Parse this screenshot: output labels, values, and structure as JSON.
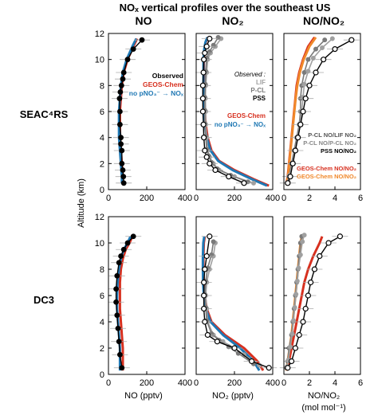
{
  "figure": {
    "title": "NOₓ vertical profiles over the southeast US",
    "column_titles": [
      "NO",
      "NO₂",
      "NO/NO₂"
    ],
    "row_labels": [
      "SEAC⁴RS",
      "DC3"
    ],
    "ylabel": "Altitude (km)",
    "xlabels": [
      "NO (pptv)",
      "NO₂ (pptv)",
      "NO/NO₂",
      "(mol mol⁻¹)"
    ]
  },
  "colors": {
    "observed": "#000000",
    "geos": "#d7301f",
    "nopno3": "#1f78b4",
    "lif": "#a0a0a0",
    "pcl": "#7a7a7a",
    "pss": "#000000",
    "geos_ratio": "#d7301f",
    "geos_ratio2": "#f0882a"
  },
  "legends": {
    "no": [
      {
        "text": "Observed",
        "color": "#000000"
      },
      {
        "text": "GEOS-Chem",
        "color": "#d7301f"
      },
      {
        "text": "no pNO₃⁻ → NOₓ",
        "color": "#1f78b4"
      }
    ],
    "no2_obs": [
      {
        "text": "Observed :",
        "color": "#000000",
        "italic": true
      },
      {
        "text": "LIF",
        "color": "#a0a0a0"
      },
      {
        "text": "P-CL",
        "color": "#7a7a7a"
      },
      {
        "text": "PSS",
        "color": "#000000"
      }
    ],
    "no2_mod": [
      {
        "text": "GEOS-Chem",
        "color": "#d7301f"
      },
      {
        "text": "no pNO₃⁻ → NOₓ",
        "color": "#1f78b4"
      }
    ],
    "ratio": [
      {
        "text": "P-CL NO/LIF NO₂",
        "color": "#555555"
      },
      {
        "text": "P-CL NO/P-CL NO₂",
        "color": "#888888"
      },
      {
        "text": "PSS NO/NO₂",
        "color": "#000000"
      },
      {
        "text": "GEOS-Chem NO/NO₂",
        "color": "#d7301f"
      },
      {
        "text": "GEOS-Chem NO/NO₂",
        "color": "#f0882a"
      }
    ]
  },
  "chart_data": [
    {
      "type": "line",
      "panel": "SEAC4RS-NO",
      "xlim": [
        0,
        400
      ],
      "ylim": [
        0,
        12
      ],
      "xticks": [
        "0",
        "200",
        "400"
      ],
      "yticks": [
        "0",
        "2",
        "4",
        "6",
        "8",
        "10",
        "12"
      ],
      "series": [
        {
          "name": "Observed",
          "style": "filled",
          "x": [
            80,
            78,
            75,
            70,
            70,
            65,
            65,
            60,
            60,
            58,
            62,
            68,
            75,
            80,
            100,
            130,
            175
          ],
          "y": [
            0.5,
            1.0,
            1.5,
            2.0,
            3.0,
            3.5,
            4.0,
            5.0,
            6.0,
            7.0,
            7.5,
            8.0,
            8.5,
            9.0,
            10.0,
            10.8,
            11.5
          ]
        },
        {
          "name": "GEOS-Chem",
          "style": "line",
          "x": [
            75,
            75,
            70,
            65,
            60,
            60,
            60,
            65,
            70,
            80,
            100,
            130,
            150
          ],
          "y": [
            0.5,
            1,
            2,
            3,
            4,
            5,
            6,
            7,
            8,
            9,
            10,
            11,
            11.6
          ]
        },
        {
          "name": "no pNO₃⁻ → NOₓ",
          "style": "line",
          "x": [
            70,
            70,
            65,
            60,
            55,
            55,
            55,
            60,
            65,
            75,
            95,
            125,
            145
          ],
          "y": [
            0.5,
            1,
            2,
            3,
            4,
            5,
            6,
            7,
            8,
            9,
            10,
            11,
            11.6
          ]
        }
      ]
    },
    {
      "type": "line",
      "panel": "SEAC4RS-NO2",
      "xlim": [
        0,
        400
      ],
      "ylim": [
        0,
        12
      ],
      "xticks": [
        "0",
        "200",
        "400"
      ],
      "series": [
        {
          "name": "LIF",
          "style": "grey",
          "x": [
            300,
            200,
            120,
            90,
            70,
            60,
            55,
            50,
            50,
            48,
            50,
            55,
            60,
            75,
            100,
            130
          ],
          "y": [
            0.5,
            1.0,
            1.5,
            2.0,
            2.5,
            3.0,
            4.0,
            5.0,
            6.0,
            7.0,
            8.0,
            9.0,
            10.0,
            10.5,
            11.0,
            11.6
          ]
        },
        {
          "name": "P-CL",
          "style": "grey",
          "x": [
            270,
            180,
            110,
            80,
            65,
            55,
            50,
            45,
            45,
            45,
            48,
            50,
            55,
            70,
            90,
            115
          ],
          "y": [
            0.6,
            1.1,
            1.6,
            2.1,
            2.6,
            3.1,
            4.1,
            5.1,
            6.1,
            7.1,
            8.1,
            9.1,
            10.1,
            10.6,
            11.1,
            11.7
          ]
        },
        {
          "name": "PSS",
          "style": "open",
          "x": [
            250,
            170,
            100,
            70,
            55,
            45,
            40,
            38,
            35,
            35,
            35,
            38,
            40,
            45,
            55,
            70
          ],
          "y": [
            0.5,
            1.0,
            1.5,
            2.0,
            2.5,
            3.0,
            4.0,
            5.0,
            6.0,
            7.0,
            8.0,
            9.0,
            10.0,
            10.5,
            11.0,
            11.6
          ]
        },
        {
          "name": "GEOS-Chem",
          "style": "line",
          "x": [
            380,
            300,
            200,
            120,
            80,
            60,
            50,
            45,
            40,
            40,
            40,
            40,
            45,
            50,
            60
          ],
          "y": [
            0.3,
            0.8,
            1.5,
            2.2,
            3,
            4,
            5,
            6,
            7,
            8,
            9,
            10,
            10.8,
            11.3,
            11.7
          ]
        },
        {
          "name": "no pNO₃⁻ → NOₓ",
          "style": "line",
          "x": [
            370,
            290,
            190,
            115,
            75,
            55,
            45,
            40,
            38,
            38,
            38,
            38,
            42,
            48,
            58
          ],
          "y": [
            0.3,
            0.8,
            1.5,
            2.2,
            3,
            4,
            5,
            6,
            7,
            8,
            9,
            10,
            10.8,
            11.3,
            11.7
          ]
        }
      ]
    },
    {
      "type": "line",
      "panel": "SEAC4RS-NO/NO2",
      "xlim": [
        0,
        6
      ],
      "ylim": [
        0,
        12
      ],
      "xticks": [
        "0",
        "2",
        "4",
        "6"
      ],
      "series": [
        {
          "name": "P-CL NO/LIF NO₂",
          "style": "grey",
          "x": [
            0.3,
            0.4,
            0.6,
            0.8,
            1.0,
            1.2,
            1.3,
            1.3,
            1.4,
            1.6,
            1.9,
            2.5,
            3.2
          ],
          "y": [
            0.5,
            1,
            2,
            3,
            4,
            5,
            6,
            7,
            8,
            9,
            10,
            10.8,
            11.5
          ]
        },
        {
          "name": "P-CL NO/P-CL NO₂",
          "style": "grey",
          "x": [
            0.35,
            0.45,
            0.7,
            0.9,
            1.1,
            1.3,
            1.4,
            1.5,
            1.6,
            1.9,
            2.3,
            3.0,
            3.8
          ],
          "y": [
            0.6,
            1.1,
            2.1,
            3.1,
            4.1,
            5.1,
            6.1,
            7.1,
            8.1,
            9.1,
            10.1,
            10.9,
            11.6
          ]
        },
        {
          "name": "PSS NO/NO₂",
          "style": "open",
          "x": [
            0.3,
            0.5,
            0.7,
            0.9,
            1.1,
            1.3,
            1.5,
            1.7,
            2.0,
            2.5,
            3.1,
            4.0,
            5.3
          ],
          "y": [
            0.5,
            1,
            2,
            3,
            4,
            5,
            6,
            7,
            8,
            9,
            10,
            10.8,
            11.5
          ]
        },
        {
          "name": "GEOS-Chem NO/NO₂",
          "style": "line",
          "x": [
            0.2,
            0.3,
            0.4,
            0.5,
            0.6,
            0.7,
            0.8,
            0.9,
            1.0,
            1.2,
            1.5,
            1.9,
            2.4
          ],
          "y": [
            0.5,
            1,
            2,
            3,
            4,
            5,
            6,
            7,
            8,
            9,
            10,
            11,
            11.7
          ]
        },
        {
          "name": "GEOS-Chem NO/NO₂",
          "style": "line2",
          "x": [
            0.22,
            0.32,
            0.42,
            0.52,
            0.62,
            0.72,
            0.82,
            0.92,
            1.05,
            1.25,
            1.55,
            2.0,
            2.5
          ],
          "y": [
            0.5,
            1,
            2,
            3,
            4,
            5,
            6,
            7,
            8,
            9,
            10,
            11,
            11.7
          ]
        }
      ]
    },
    {
      "type": "line",
      "panel": "DC3-NO",
      "xlim": [
        0,
        400
      ],
      "ylim": [
        0,
        12
      ],
      "xticks": [
        "0",
        "200",
        "400"
      ],
      "yticks": [
        "0",
        "2",
        "4",
        "6",
        "8",
        "10",
        "12"
      ],
      "series": [
        {
          "name": "Observed",
          "style": "filled",
          "x": [
            70,
            60,
            55,
            50,
            45,
            40,
            40,
            45,
            55,
            65,
            80,
            100,
            130
          ],
          "y": [
            0.5,
            1.5,
            2.5,
            3.5,
            4.5,
            5.5,
            6.5,
            7.5,
            8.5,
            9.0,
            9.5,
            10.0,
            10.5
          ]
        },
        {
          "name": "GEOS-Chem",
          "style": "line",
          "x": [
            75,
            75,
            75,
            70,
            65,
            60,
            60,
            60,
            65,
            75,
            90,
            110,
            125
          ],
          "y": [
            0.3,
            1,
            2,
            3,
            4,
            5,
            6,
            7,
            8,
            8.8,
            9.5,
            10,
            10.5
          ]
        },
        {
          "name": "no pNO₃⁻ → NOₓ",
          "style": "line",
          "x": [
            60,
            60,
            60,
            55,
            50,
            45,
            45,
            48,
            55,
            65,
            80,
            100,
            115
          ],
          "y": [
            0.3,
            1,
            2,
            3,
            4,
            5,
            6,
            7,
            8,
            8.8,
            9.5,
            10,
            10.5
          ]
        }
      ]
    },
    {
      "type": "line",
      "panel": "DC3-NO2",
      "xlim": [
        0,
        400
      ],
      "ylim": [
        0,
        12
      ],
      "xticks": [
        "0",
        "200",
        "400"
      ],
      "series": [
        {
          "name": "LIF",
          "style": "grey",
          "x": [
            330,
            250,
            200,
            140,
            90,
            60,
            55,
            50,
            55,
            70,
            90,
            100
          ],
          "y": [
            0.7,
            1.5,
            2,
            2.5,
            3,
            4,
            5,
            6,
            7,
            8,
            9,
            10
          ]
        },
        {
          "name": "P-CL",
          "style": "grey",
          "x": [
            300,
            220,
            170,
            120,
            80,
            55,
            50,
            45,
            50,
            60,
            80,
            90
          ],
          "y": [
            0.8,
            1.6,
            2.1,
            2.6,
            3.1,
            4.1,
            5.1,
            6.1,
            7.1,
            8.1,
            9.1,
            10.1
          ]
        },
        {
          "name": "PSS",
          "style": "open",
          "x": [
            380,
            290,
            200,
            110,
            60,
            45,
            40,
            40,
            40,
            45,
            55,
            70
          ],
          "y": [
            0.5,
            1.0,
            2.0,
            2.5,
            3.0,
            4.0,
            5.0,
            6.0,
            7.0,
            8.0,
            9.0,
            10.5
          ]
        },
        {
          "name": "GEOS-Chem",
          "style": "line",
          "x": [
            350,
            320,
            250,
            150,
            80,
            55,
            45,
            40,
            38,
            38,
            40,
            45
          ],
          "y": [
            0.3,
            1,
            2,
            3,
            4,
            5,
            6,
            7,
            8,
            9,
            10,
            10.5
          ]
        },
        {
          "name": "no pNO₃⁻ → NOₓ",
          "style": "line",
          "x": [
            330,
            300,
            230,
            140,
            75,
            50,
            40,
            36,
            35,
            35,
            37,
            42
          ],
          "y": [
            0.3,
            1,
            2,
            3,
            4,
            5,
            6,
            7,
            8,
            9,
            10,
            10.5
          ]
        }
      ]
    },
    {
      "type": "line",
      "panel": "DC3-NO/NO2",
      "xlim": [
        0,
        6
      ],
      "ylim": [
        0,
        12
      ],
      "xticks": [
        "0",
        "2",
        "4",
        "6"
      ],
      "series": [
        {
          "name": "P-CL NO/LIF NO₂",
          "style": "grey",
          "x": [
            0.2,
            0.3,
            0.4,
            0.6,
            0.7,
            0.8,
            0.9,
            1.0,
            1.1,
            1.2,
            1.3,
            1.4
          ],
          "y": [
            0.5,
            1,
            2,
            3,
            4,
            5,
            6,
            7,
            8,
            9,
            10,
            10.5
          ]
        },
        {
          "name": "P-CL NO/P-CL NO₂",
          "style": "grey",
          "x": [
            0.25,
            0.35,
            0.5,
            0.65,
            0.75,
            0.85,
            0.95,
            1.05,
            1.15,
            1.3,
            1.45,
            1.6
          ],
          "y": [
            0.6,
            1.1,
            2.1,
            3.1,
            4.1,
            5.1,
            6.1,
            7.1,
            8.1,
            9.1,
            10.1,
            10.6
          ]
        },
        {
          "name": "PSS NO/NO₂",
          "style": "open",
          "x": [
            0.3,
            0.6,
            0.9,
            1.2,
            1.5,
            1.7,
            1.9,
            2.1,
            2.4,
            2.8,
            3.5,
            4.4
          ],
          "y": [
            0.5,
            1,
            2,
            3,
            4,
            5,
            6,
            7,
            8,
            9,
            10,
            10.5
          ]
        },
        {
          "name": "GEOS-Chem NO/NO₂",
          "style": "line",
          "x": [
            0.2,
            0.4,
            0.6,
            0.8,
            1.0,
            1.2,
            1.4,
            1.6,
            1.9,
            2.3,
            2.8,
            3.0
          ],
          "y": [
            0.3,
            1,
            2,
            3,
            4,
            5,
            6,
            7,
            8,
            9,
            10,
            10.5
          ]
        },
        {
          "name": "GEOS-Chem NO/NO₂",
          "style": "line2",
          "x": [
            0.18,
            0.3,
            0.45,
            0.6,
            0.7,
            0.8,
            0.9,
            1.0,
            1.1,
            1.2,
            1.3,
            1.4
          ],
          "y": [
            0.3,
            1,
            2,
            3,
            4,
            5,
            6,
            7,
            8,
            9,
            10,
            10.5
          ]
        }
      ]
    }
  ]
}
